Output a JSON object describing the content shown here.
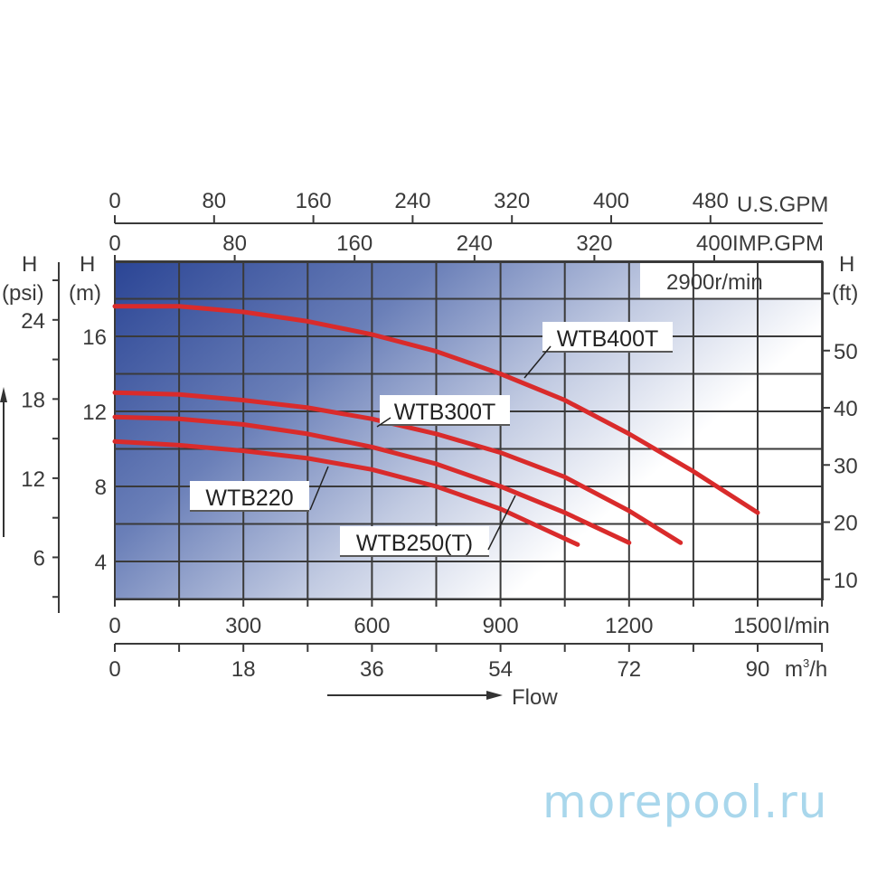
{
  "chart_data": {
    "type": "line",
    "title": "",
    "speed_label": "2900r/min",
    "xlabel": "Flow",
    "x_axes": {
      "primary": {
        "unit": "l/min",
        "ticks": [
          0,
          300,
          600,
          900,
          1200,
          1500
        ],
        "range": [
          0,
          1650
        ]
      },
      "m3h": {
        "unit": "m³/h",
        "ticks": [
          0,
          18,
          36,
          54,
          72,
          90
        ]
      },
      "us_gpm": {
        "unit": "U.S.GPM",
        "ticks": [
          0,
          80,
          160,
          240,
          320,
          400,
          480
        ]
      },
      "imp_gpm": {
        "unit": "IMP.GPM",
        "ticks": [
          0,
          80,
          160,
          240,
          320,
          400
        ]
      }
    },
    "y_axes": {
      "primary": {
        "label": "H (m)",
        "ticks": [
          4,
          8,
          12,
          16
        ],
        "range": [
          2,
          20
        ]
      },
      "psi": {
        "label": "H (psi)",
        "ticks": [
          6,
          12,
          18,
          24
        ]
      },
      "ft": {
        "label": "H (ft)",
        "ticks": [
          10,
          20,
          30,
          40,
          50
        ]
      }
    },
    "grid": true,
    "series": [
      {
        "name": "WTB400T",
        "x": [
          0,
          150,
          300,
          450,
          600,
          750,
          900,
          1050,
          1200,
          1350,
          1500
        ],
        "y": [
          17.6,
          17.6,
          17.3,
          16.8,
          16.1,
          15.2,
          14.0,
          12.6,
          10.8,
          8.8,
          6.6
        ]
      },
      {
        "name": "WTB300T",
        "x": [
          0,
          150,
          300,
          450,
          600,
          750,
          900,
          1050,
          1200,
          1320
        ],
        "y": [
          13.0,
          12.9,
          12.6,
          12.2,
          11.6,
          10.8,
          9.8,
          8.5,
          6.7,
          5.0
        ]
      },
      {
        "name": "WTB250(T)",
        "x": [
          0,
          150,
          300,
          450,
          600,
          750,
          900,
          1050,
          1200
        ],
        "y": [
          11.7,
          11.6,
          11.3,
          10.8,
          10.1,
          9.2,
          8.0,
          6.6,
          5.0
        ]
      },
      {
        "name": "WTB220",
        "x": [
          0,
          150,
          300,
          450,
          600,
          750,
          900,
          1080
        ],
        "y": [
          10.4,
          10.2,
          9.9,
          9.5,
          8.9,
          8.0,
          6.8,
          4.9
        ]
      }
    ],
    "curve_color": "#d92b2b"
  },
  "labels": {
    "h_psi_top": "H",
    "h_psi_unit": "(psi)",
    "h_m_top": "H",
    "h_m_unit": "(m)",
    "h_ft_top": "H",
    "h_ft_unit": "(ft)",
    "us_gpm_unit": "U.S.GPM",
    "imp_gpm_unit": "IMP.GPM",
    "lmin_unit": "l/min",
    "m3h_unit": "m³/h",
    "flow": "Flow",
    "speed": "2900r/min"
  },
  "watermark": "morepool.ru"
}
